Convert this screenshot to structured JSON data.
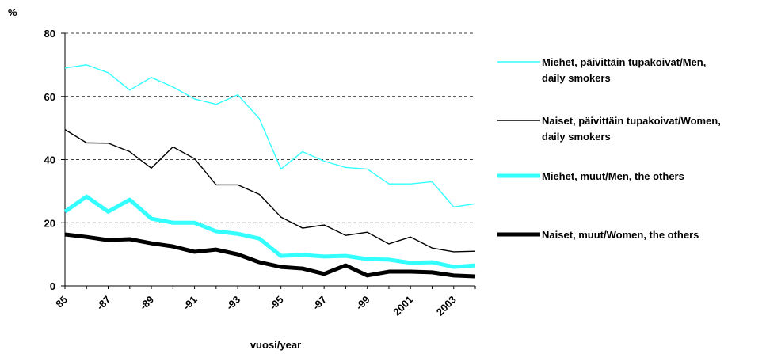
{
  "chart_data": {
    "type": "line",
    "y_label": "%",
    "x_label": "vuosi/year",
    "categories": [
      "85",
      null,
      "-87",
      null,
      "-89",
      null,
      "-91",
      null,
      "-93",
      null,
      "-95",
      null,
      "-97",
      null,
      "-99",
      null,
      "2001",
      null,
      "2003",
      null
    ],
    "ylim": [
      0,
      80
    ],
    "yticks": [
      0,
      20,
      40,
      60,
      80
    ],
    "grid": true,
    "series": [
      {
        "name": "Miehet, päivittäin tupakoivat/Men, daily smokers",
        "color": "#33ffff",
        "width": "thin",
        "values": [
          69,
          70,
          67.5,
          62,
          66,
          63,
          59.2,
          57.5,
          60.5,
          53,
          37,
          42.5,
          39.5,
          37.5,
          37,
          32.3,
          32.3,
          33,
          25,
          26
        ]
      },
      {
        "name": "Naiset, päivittäin tupakoivat/Women, daily smokers",
        "color": "#000000",
        "width": "thin",
        "values": [
          49.5,
          45.3,
          45.2,
          42.5,
          37.3,
          44,
          40.3,
          32,
          32,
          29,
          21.8,
          18.3,
          19.3,
          16,
          17,
          13.3,
          15.5,
          12,
          10.8,
          11
        ]
      },
      {
        "name": "Miehet, muut/Men, the others",
        "color": "#33ffff",
        "width": "thick",
        "values": [
          23.5,
          28.3,
          23.5,
          27.3,
          21.3,
          20,
          20,
          17.3,
          16.5,
          15,
          9.5,
          9.8,
          9.3,
          9.5,
          8.5,
          8.3,
          7.3,
          7.5,
          6,
          6.5
        ]
      },
      {
        "name": "Naiset, muut/Women, the others",
        "color": "#000000",
        "width": "thick",
        "values": [
          16.3,
          15.5,
          14.5,
          14.8,
          13.5,
          12.5,
          10.8,
          11.5,
          10,
          7.5,
          6,
          5.5,
          3.8,
          6.5,
          3.3,
          4.5,
          4.5,
          4.3,
          3.3,
          3
        ]
      }
    ]
  }
}
